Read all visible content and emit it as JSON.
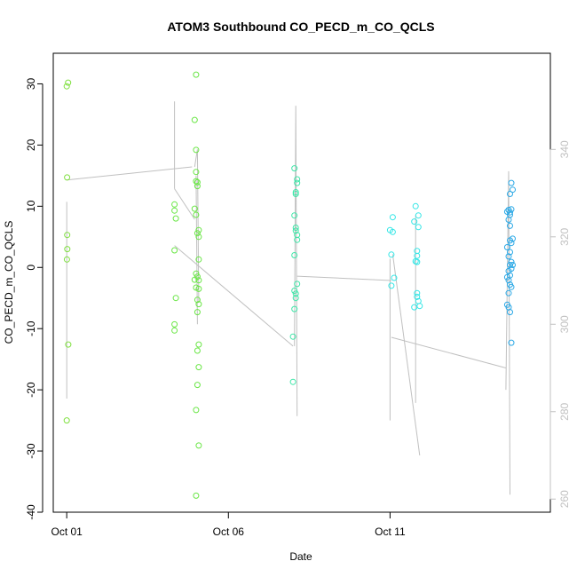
{
  "chart_data": {
    "type": "scatter",
    "title": "ATOM3 Southbound CO_PECD_m_CO_QCLS",
    "xlabel": "Date",
    "ylabel": "CO_PECD_m_CO_QCLS",
    "xlim": [
      "2016-09-30T14:00",
      "2016-10-15T23:00"
    ],
    "ylim": [
      -40,
      35
    ],
    "y_ticks": [
      -40,
      -30,
      -20,
      -10,
      0,
      10,
      20,
      30
    ],
    "x_ticks": [
      {
        "label": "Oct 01",
        "value": "2016-10-01"
      },
      {
        "label": "Oct 06",
        "value": "2016-10-06"
      },
      {
        "label": "Oct 11",
        "value": "2016-10-11"
      }
    ],
    "y2lim": [
      257,
      362
    ],
    "y2_ticks": [
      260,
      280,
      300,
      320,
      340
    ],
    "grid": false,
    "legend": "none",
    "colors": {
      "points_early": "#7fe03f",
      "points_mid1": "#4ae650",
      "points_mid2": "#3ee6a8",
      "points_late1": "#33e6e6",
      "points_late2": "#2aa8e6",
      "line": "#c0c0c0",
      "right_axis": "#c0c0c0"
    },
    "series": [
      {
        "color": "#7fe03f",
        "points": [
          [
            "2016-10-01T00:00",
            29.6
          ],
          [
            "2016-10-01T01:00",
            30.2
          ],
          [
            "2016-10-01T00:15",
            14.7
          ],
          [
            "2016-10-01T00:20",
            5.3
          ],
          [
            "2016-10-01T00:25",
            3.0
          ],
          [
            "2016-10-01T00:10",
            1.3
          ],
          [
            "2016-10-01T01:10",
            -12.6
          ],
          [
            "2016-10-01T00:00",
            -25.0
          ]
        ]
      },
      {
        "color": "#6ae646",
        "points": [
          [
            "2016-10-04T08:00",
            10.3
          ],
          [
            "2016-10-04T08:00",
            9.3
          ],
          [
            "2016-10-04T09:00",
            8.0
          ],
          [
            "2016-10-04T08:00",
            2.8
          ],
          [
            "2016-10-04T09:00",
            -5.0
          ],
          [
            "2016-10-04T08:00",
            -9.3
          ],
          [
            "2016-10-04T08:00",
            -10.3
          ],
          [
            "2016-10-05T00:00",
            31.5
          ],
          [
            "2016-10-04T23:00",
            24.1
          ],
          [
            "2016-10-05T00:00",
            19.2
          ],
          [
            "2016-10-05T00:00",
            15.6
          ],
          [
            "2016-10-05T00:00",
            14.1
          ],
          [
            "2016-10-05T01:00",
            13.9
          ],
          [
            "2016-10-05T01:00",
            13.3
          ],
          [
            "2016-10-04T23:00",
            9.6
          ],
          [
            "2016-10-05T00:00",
            8.6
          ],
          [
            "2016-10-05T02:00",
            6.1
          ],
          [
            "2016-10-05T01:00",
            5.6
          ],
          [
            "2016-10-05T02:00",
            5.0
          ],
          [
            "2016-10-05T02:00",
            1.3
          ],
          [
            "2016-10-04T23:00",
            -2.0
          ],
          [
            "2016-10-05T00:00",
            -1.0
          ],
          [
            "2016-10-05T01:00",
            -1.5
          ],
          [
            "2016-10-05T02:00",
            -2.1
          ],
          [
            "2016-10-05T00:00",
            -3.3
          ],
          [
            "2016-10-05T02:00",
            -3.5
          ],
          [
            "2016-10-05T01:00",
            -5.3
          ],
          [
            "2016-10-05T02:00",
            -6.0
          ],
          [
            "2016-10-05T01:00",
            -7.3
          ],
          [
            "2016-10-05T02:00",
            -12.6
          ],
          [
            "2016-10-05T01:00",
            -13.6
          ],
          [
            "2016-10-05T02:00",
            -16.3
          ],
          [
            "2016-10-05T01:00",
            -19.2
          ],
          [
            "2016-10-05T00:00",
            -23.3
          ],
          [
            "2016-10-05T02:00",
            -29.1
          ],
          [
            "2016-10-05T00:00",
            -37.3
          ]
        ]
      },
      {
        "color": "#3ee6a8",
        "points": [
          [
            "2016-10-08T01:00",
            16.2
          ],
          [
            "2016-10-08T03:00",
            14.4
          ],
          [
            "2016-10-08T03:00",
            13.8
          ],
          [
            "2016-10-08T02:00",
            12.3
          ],
          [
            "2016-10-08T02:00",
            12.0
          ],
          [
            "2016-10-08T01:00",
            8.5
          ],
          [
            "2016-10-08T02:00",
            6.5
          ],
          [
            "2016-10-08T02:00",
            6.0
          ],
          [
            "2016-10-08T03:00",
            5.3
          ],
          [
            "2016-10-08T03:00",
            4.5
          ],
          [
            "2016-10-08T01:00",
            2.0
          ],
          [
            "2016-10-08T03:00",
            -2.7
          ],
          [
            "2016-10-08T01:00",
            -3.8
          ],
          [
            "2016-10-08T02:00",
            -4.3
          ],
          [
            "2016-10-08T02:00",
            -5.0
          ],
          [
            "2016-10-08T01:00",
            -6.8
          ],
          [
            "2016-10-08T00:00",
            -11.3
          ],
          [
            "2016-10-08T00:00",
            -18.7
          ]
        ]
      },
      {
        "color": "#33e6e6",
        "points": [
          [
            "2016-10-11T02:00",
            8.2
          ],
          [
            "2016-10-11T00:00",
            6.1
          ],
          [
            "2016-10-11T02:00",
            5.8
          ],
          [
            "2016-10-11T01:00",
            2.1
          ],
          [
            "2016-10-11T03:00",
            -1.7
          ],
          [
            "2016-10-11T01:00",
            -3.0
          ],
          [
            "2016-10-11T19:00",
            10.0
          ],
          [
            "2016-10-11T21:00",
            8.5
          ],
          [
            "2016-10-11T18:00",
            7.5
          ],
          [
            "2016-10-11T21:00",
            6.6
          ],
          [
            "2016-10-11T20:00",
            2.7
          ],
          [
            "2016-10-11T20:00",
            1.9
          ],
          [
            "2016-10-11T19:00",
            1.0
          ],
          [
            "2016-10-11T20:00",
            0.9
          ],
          [
            "2016-10-11T20:00",
            -4.2
          ],
          [
            "2016-10-11T20:00",
            -4.8
          ],
          [
            "2016-10-11T21:00",
            -5.5
          ],
          [
            "2016-10-11T18:00",
            -6.5
          ],
          [
            "2016-10-11T22:00",
            -6.3
          ]
        ]
      },
      {
        "color": "#2aa8e6",
        "points": [
          [
            "2016-10-14T18:00",
            13.8
          ],
          [
            "2016-10-14T19:00",
            12.7
          ],
          [
            "2016-10-14T17:00",
            12.0
          ],
          [
            "2016-10-14T16:00",
            9.4
          ],
          [
            "2016-10-14T17:00",
            9.0
          ],
          [
            "2016-10-14T18:00",
            9.5
          ],
          [
            "2016-10-14T15:00",
            9.1
          ],
          [
            "2016-10-14T17:00",
            8.6
          ],
          [
            "2016-10-14T16:00",
            7.8
          ],
          [
            "2016-10-14T17:00",
            6.8
          ],
          [
            "2016-10-14T19:00",
            4.7
          ],
          [
            "2016-10-14T17:00",
            4.4
          ],
          [
            "2016-10-14T18:00",
            4.0
          ],
          [
            "2016-10-14T15:00",
            3.3
          ],
          [
            "2016-10-14T17:00",
            2.5
          ],
          [
            "2016-10-14T16:00",
            1.8
          ],
          [
            "2016-10-14T18:00",
            0.9
          ],
          [
            "2016-10-14T17:00",
            0.4
          ],
          [
            "2016-10-14T19:00",
            0.4
          ],
          [
            "2016-10-14T18:00",
            -0.2
          ],
          [
            "2016-10-14T16:00",
            -0.6
          ],
          [
            "2016-10-14T17:00",
            -1.3
          ],
          [
            "2016-10-14T15:00",
            -1.6
          ],
          [
            "2016-10-14T16:00",
            -2.1
          ],
          [
            "2016-10-14T17:00",
            -2.8
          ],
          [
            "2016-10-14T18:00",
            -3.2
          ],
          [
            "2016-10-14T16:00",
            -4.2
          ],
          [
            "2016-10-14T15:00",
            -6.1
          ],
          [
            "2016-10-14T16:00",
            -6.5
          ],
          [
            "2016-10-14T17:00",
            -7.3
          ],
          [
            "2016-10-14T18:00",
            -12.3
          ]
        ]
      }
    ],
    "line_series": {
      "color": "#c0c0c0",
      "axis": "right",
      "segments": [
        [
          [
            "2016-10-01T00:00",
            328
          ],
          [
            "2016-10-01T00:00",
            283
          ],
          [
            "2016-10-01T00:00",
            306
          ]
        ],
        [
          [
            "2016-10-01T00:10",
            333
          ],
          [
            "2016-10-04T21:00",
            336
          ]
        ],
        [
          [
            "2016-10-04T08:00",
            351
          ],
          [
            "2016-10-04T08:00",
            331
          ]
        ],
        [
          [
            "2016-10-04T08:00",
            331
          ],
          [
            "2016-10-04T23:00",
            324
          ]
        ],
        [
          [
            "2016-10-04T08:00",
            318
          ],
          [
            "2016-10-08T00:00",
            295
          ]
        ],
        [
          [
            "2016-10-04T23:00",
            336
          ],
          [
            "2016-10-05T01:00",
            340
          ],
          [
            "2016-10-05T02:00",
            305
          ]
        ],
        [
          [
            "2016-10-05T00:00",
            334
          ],
          [
            "2016-10-05T01:00",
            300
          ]
        ],
        [
          [
            "2016-10-08T01:00",
            295
          ],
          [
            "2016-10-08T02:00",
            350
          ],
          [
            "2016-10-08T03:00",
            279
          ]
        ],
        [
          [
            "2016-10-08T03:00",
            311
          ],
          [
            "2016-10-11T01:00",
            310
          ]
        ],
        [
          [
            "2016-10-11T00:00",
            315
          ],
          [
            "2016-10-11T00:00",
            278
          ]
        ],
        [
          [
            "2016-10-11T01:00",
            297
          ],
          [
            "2016-10-14T14:00",
            290
          ]
        ],
        [
          [
            "2016-10-11T02:00",
            316
          ],
          [
            "2016-10-11T22:00",
            270
          ]
        ],
        [
          [
            "2016-10-11T19:00",
            325
          ],
          [
            "2016-10-11T19:00",
            282
          ]
        ],
        [
          [
            "2016-10-14T14:00",
            285
          ],
          [
            "2016-10-14T16:00",
            335
          ],
          [
            "2016-10-14T17:00",
            261
          ]
        ]
      ]
    }
  }
}
